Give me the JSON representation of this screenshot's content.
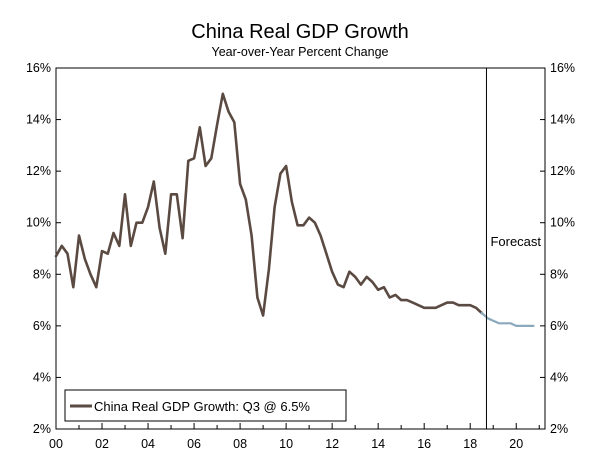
{
  "chart_data": {
    "type": "line",
    "title": "China Real GDP Growth",
    "subtitle": "Year-over-Year Percent Change",
    "xlabel": "",
    "ylabel": "",
    "x_tick_labels": [
      "00",
      "02",
      "04",
      "06",
      "08",
      "10",
      "12",
      "14",
      "16",
      "18",
      "20"
    ],
    "x_tick_values": [
      2000,
      2002,
      2004,
      2006,
      2008,
      2010,
      2012,
      2014,
      2016,
      2018,
      2020
    ],
    "y_tick_labels": [
      "2%",
      "4%",
      "6%",
      "8%",
      "10%",
      "12%",
      "14%",
      "16%"
    ],
    "y_tick_values": [
      2,
      4,
      6,
      8,
      10,
      12,
      14,
      16
    ],
    "xlim": [
      2000,
      2021.25
    ],
    "ylim": [
      2,
      16
    ],
    "grid": false,
    "legend": "bottom-left",
    "legend_label": "China Real GDP Growth: Q3 @ 6.5%",
    "forecast_label": "Forecast",
    "forecast_start": 2018.75,
    "colors": {
      "actual": "#5a4a42",
      "forecast": "#8aa9bd",
      "axis": "#000000"
    },
    "series": [
      {
        "name": "China Real GDP Growth: Q3 @ 6.5%",
        "style": "actual",
        "x": [
          2000.0,
          2000.25,
          2000.5,
          2000.75,
          2001.0,
          2001.25,
          2001.5,
          2001.75,
          2002.0,
          2002.25,
          2002.5,
          2002.75,
          2003.0,
          2003.25,
          2003.5,
          2003.75,
          2004.0,
          2004.25,
          2004.5,
          2004.75,
          2005.0,
          2005.25,
          2005.5,
          2005.75,
          2006.0,
          2006.25,
          2006.5,
          2006.75,
          2007.0,
          2007.25,
          2007.5,
          2007.75,
          2008.0,
          2008.25,
          2008.5,
          2008.75,
          2009.0,
          2009.25,
          2009.5,
          2009.75,
          2010.0,
          2010.25,
          2010.5,
          2010.75,
          2011.0,
          2011.25,
          2011.5,
          2011.75,
          2012.0,
          2012.25,
          2012.5,
          2012.75,
          2013.0,
          2013.25,
          2013.5,
          2013.75,
          2014.0,
          2014.25,
          2014.5,
          2014.75,
          2015.0,
          2015.25,
          2015.5,
          2015.75,
          2016.0,
          2016.25,
          2016.5,
          2016.75,
          2017.0,
          2017.25,
          2017.5,
          2017.75,
          2018.0,
          2018.25,
          2018.5
        ],
        "y": [
          8.7,
          9.1,
          8.8,
          7.5,
          9.5,
          8.6,
          8.0,
          7.5,
          8.9,
          8.8,
          9.6,
          9.1,
          11.1,
          9.1,
          10.0,
          10.0,
          10.6,
          11.6,
          9.8,
          8.8,
          11.1,
          11.1,
          9.4,
          12.4,
          12.5,
          13.7,
          12.2,
          12.5,
          13.8,
          15.0,
          14.3,
          13.9,
          11.5,
          10.9,
          9.5,
          7.1,
          6.4,
          8.2,
          10.6,
          11.9,
          12.2,
          10.8,
          9.9,
          9.9,
          10.2,
          10.0,
          9.5,
          8.8,
          8.1,
          7.6,
          7.5,
          8.1,
          7.9,
          7.6,
          7.9,
          7.7,
          7.4,
          7.5,
          7.1,
          7.2,
          7.0,
          7.0,
          6.9,
          6.8,
          6.7,
          6.7,
          6.7,
          6.8,
          6.9,
          6.9,
          6.8,
          6.8,
          6.8,
          6.7,
          6.5
        ]
      },
      {
        "name": "",
        "style": "forecast",
        "x": [
          2018.5,
          2018.75,
          2019.0,
          2019.25,
          2019.5,
          2019.75,
          2020.0,
          2020.25,
          2020.5,
          2020.75
        ],
        "y": [
          6.5,
          6.3,
          6.2,
          6.1,
          6.1,
          6.1,
          6.0,
          6.0,
          6.0,
          6.0
        ]
      }
    ]
  }
}
